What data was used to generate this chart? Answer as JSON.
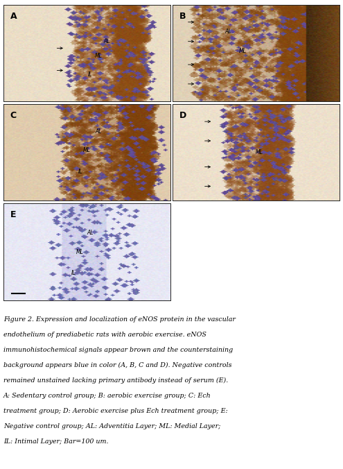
{
  "figure_width": 4.95,
  "figure_height": 6.76,
  "dpi": 100,
  "bg_color": "#ffffff",
  "border_color": "#222222",
  "caption_fontsize": 6.8,
  "caption_text_line1": "Figure 2. Expression and localization of eNOS protein in the vascular",
  "caption_text_line2": "endothelium of prediabetic rats with aerobic exercise. eNOS",
  "caption_text_line3": "immunohistochemical signals appear brown and the counterstaining",
  "caption_text_line4": "background appears blue in color (A, B, C and D). Negative controls",
  "caption_text_line5": "remained unstained lacking primary antibody instead of serum (E).",
  "caption_text_line6": "A: Sedentary control group; B: aerobic exercise group; C: Ech",
  "caption_text_line7": "treatment group; D: Aerobic exercise plus Ech treatment group; E:",
  "caption_text_line8": "Negative control group; AL: Adventitia Layer; ML: Medial Layer;",
  "caption_text_line9": "IL: Intimal Layer; Bar=100 um."
}
